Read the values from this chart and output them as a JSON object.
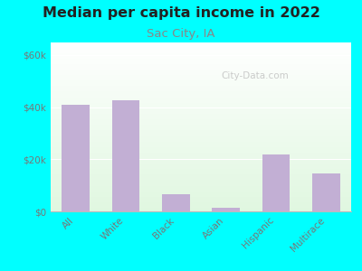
{
  "title": "Median per capita income in 2022",
  "subtitle": "Sac City, IA",
  "categories": [
    "All",
    "White",
    "Black",
    "Asian",
    "Hispanic",
    "Multirace"
  ],
  "values": [
    41000,
    42500,
    6500,
    1500,
    22000,
    14500
  ],
  "bar_color": "#c2afd4",
  "title_fontsize": 11.5,
  "subtitle_fontsize": 9.5,
  "subtitle_color": "#888888",
  "title_color": "#222222",
  "background_color": "#00ffff",
  "ylim": [
    0,
    65000
  ],
  "yticks": [
    0,
    20000,
    40000,
    60000
  ],
  "ytick_labels": [
    "$0",
    "$20k",
    "$40k",
    "$60k"
  ],
  "watermark": "City-Data.com",
  "tick_color": "#777777",
  "tick_fontsize": 7.5
}
